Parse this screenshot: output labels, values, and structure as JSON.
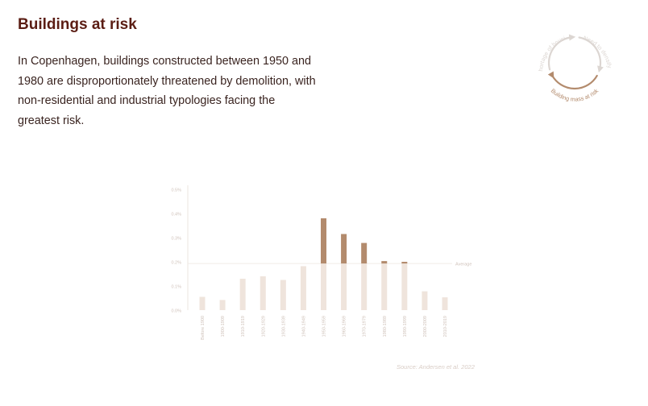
{
  "page": {
    "title": "Buildings at risk",
    "intro": "In Copenhagen, buildings constructed between 1950 and 1980 are disproportionately threatened by demolition, with non-residential and industrial typologies facing the greatest risk.",
    "source": "Source: Andersen et al. 2022"
  },
  "cycle": {
    "labels": [
      "Shortage of housing",
      "Need to densify",
      "Building mass at risk"
    ],
    "active": "Building mass at risk",
    "colors": {
      "inactive": "#dcd6d2",
      "active": "#b38b6d"
    }
  },
  "chart_data": {
    "type": "bar",
    "categories": [
      "Before 1900",
      "1900-1909",
      "1910-1919",
      "1920-1929",
      "1930-1939",
      "1940-1949",
      "1950-1959",
      "1960-1969",
      "1970-1979",
      "1980-1989",
      "1990-1999",
      "2000-2009",
      "2010-2019"
    ],
    "values": [
      0.055,
      0.042,
      0.13,
      0.14,
      0.125,
      0.182,
      0.38,
      0.315,
      0.278,
      0.203,
      0.2,
      0.078,
      0.053
    ],
    "average": 0.193,
    "average_label": "Average",
    "ylim": [
      0,
      0.5
    ],
    "yticks": [
      0,
      0.1,
      0.2,
      0.3,
      0.4,
      0.5
    ],
    "ytick_labels": [
      "0.0%",
      "0.1%",
      "0.2%",
      "0.3%",
      "0.4%",
      "0.5%"
    ],
    "grid": false,
    "colors": {
      "base": "#efe4dc",
      "excess": "#b38b6d",
      "axis": "#ebe4df",
      "text": "#d0c3bb",
      "average_line": "#f1ebe7"
    }
  }
}
